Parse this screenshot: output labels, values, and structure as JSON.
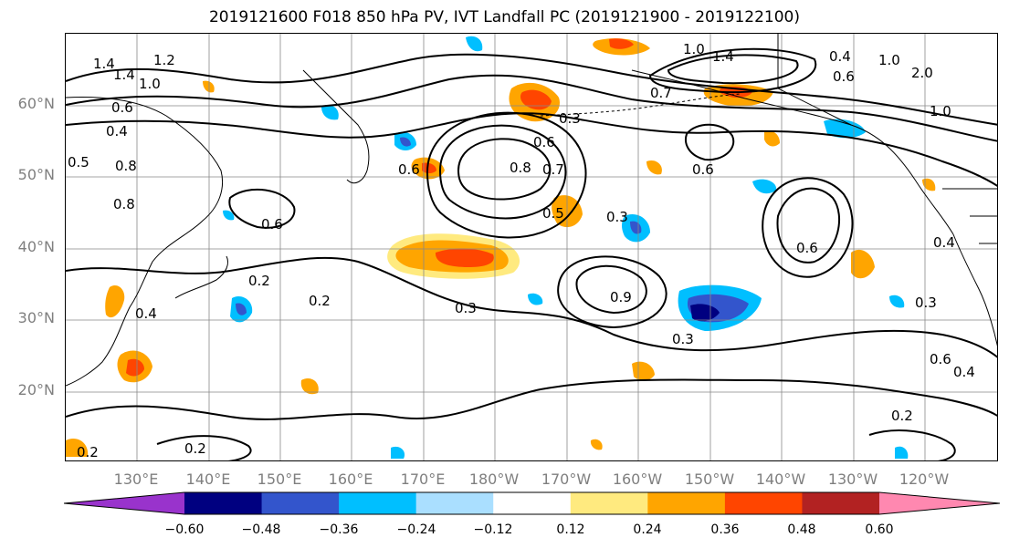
{
  "title": "2019121600 F018 850 hPa PV, IVT Landfall PC (2019121900 - 2019122100)",
  "lat_labels": [
    "60°N",
    "50°N",
    "40°N",
    "30°N",
    "20°N"
  ],
  "lon_labels": [
    "130°E",
    "140°E",
    "150°E",
    "160°E",
    "170°E",
    "180°W",
    "170°W",
    "160°W",
    "150°W",
    "140°W",
    "130°W",
    "120°W"
  ],
  "contour_labels": [
    "1.4",
    "1.4",
    "1.2",
    "1.0",
    "0.4",
    "0.5",
    "0.8",
    "0.8",
    "0.6",
    "0.2",
    "0.2",
    "0.4",
    "0.2",
    "0.2",
    "0.3",
    "0.6",
    "0.8",
    "0.7",
    "0.5",
    "0.3",
    "0.9",
    "0.3",
    "1.0",
    "1.4",
    "0.6",
    "0.4",
    "1.0",
    "2.0",
    "0.6",
    "0.7",
    "0.4",
    "0.3",
    "0.6",
    "0.4",
    "0.6",
    "0.2",
    "1.0",
    "0.6",
    "0.6",
    "0.3"
  ],
  "colorbar": {
    "colors": [
      "#9933cc",
      "#000080",
      "#3355cc",
      "#00bfff",
      "#aadfff",
      "#ffffff",
      "#ffea7f",
      "#ffa500",
      "#ff4500",
      "#b22222",
      "#ff88b0"
    ],
    "ticks": [
      "−0.60",
      "−0.48",
      "−0.36",
      "−0.24",
      "−0.12",
      "0.12",
      "0.24",
      "0.36",
      "0.48",
      "0.60"
    ]
  }
}
